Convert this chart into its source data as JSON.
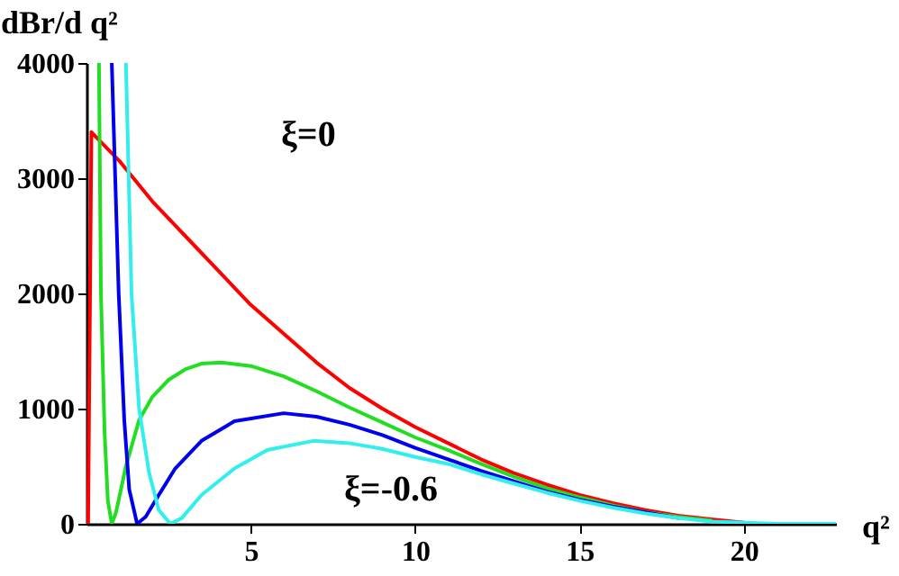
{
  "chart_data": {
    "type": "line",
    "xlabel": "q²",
    "ylabel": "dBr/d q²",
    "xlim": [
      0,
      22.8
    ],
    "ylim": [
      0,
      4000
    ],
    "xticks": [
      5,
      10,
      15,
      20
    ],
    "yticks": [
      0,
      1000,
      2000,
      3000,
      4000
    ],
    "grid": false,
    "marker": "none",
    "line_style": "solid",
    "annotations": [
      "ξ=0",
      "ξ=-0.6"
    ],
    "series": [
      {
        "color": "#ff0000",
        "x": [
          0.05,
          0.15,
          1,
          2,
          3,
          4,
          5,
          6,
          7,
          8,
          9,
          10,
          11,
          12,
          13,
          14,
          15,
          16,
          17,
          18,
          19,
          20
        ],
        "values": [
          0,
          3400,
          3150,
          2800,
          2500,
          2200,
          1900,
          1650,
          1400,
          1180,
          1000,
          840,
          700,
          560,
          440,
          340,
          250,
          180,
          120,
          70,
          40,
          10
        ]
      },
      {
        "color": "#22dd22",
        "x": [
          0.38,
          0.44,
          0.55,
          0.65,
          0.77,
          0.9,
          1.2,
          1.6,
          2,
          2.5,
          3,
          3.5,
          4.1,
          5,
          6,
          7,
          8,
          9,
          10,
          11,
          12,
          13,
          14,
          15,
          16,
          17,
          18,
          19
        ],
        "values": [
          4000,
          2000,
          800,
          200,
          0,
          100,
          500,
          900,
          1100,
          1250,
          1340,
          1390,
          1400,
          1370,
          1280,
          1150,
          1010,
          880,
          750,
          640,
          520,
          410,
          310,
          230,
          160,
          100,
          60,
          30
        ]
      },
      {
        "color": "#0000ee",
        "x": [
          0.77,
          0.98,
          1.15,
          1.3,
          1.54,
          1.8,
          2.2,
          2.7,
          3.5,
          4.5,
          6,
          7,
          8,
          9,
          10,
          11,
          12,
          13,
          14,
          15,
          16,
          17,
          18
        ],
        "values": [
          4000,
          2000,
          900,
          300,
          0,
          60,
          250,
          480,
          720,
          890,
          960,
          930,
          860,
          770,
          660,
          560,
          460,
          370,
          280,
          210,
          150,
          100,
          50
        ]
      },
      {
        "color": "#33eeee",
        "x": [
          1.2,
          1.37,
          1.6,
          1.9,
          2.2,
          2.55,
          2.9,
          3.5,
          4.5,
          5.5,
          6.9,
          8,
          9,
          10,
          11,
          12,
          13,
          14,
          15,
          16,
          17,
          18,
          19,
          20,
          21,
          22.8
        ],
        "values": [
          4000,
          2000,
          1000,
          450,
          120,
          0,
          50,
          250,
          480,
          640,
          720,
          700,
          650,
          580,
          520,
          430,
          350,
          270,
          200,
          140,
          90,
          50,
          20,
          10,
          0,
          0
        ]
      }
    ]
  }
}
